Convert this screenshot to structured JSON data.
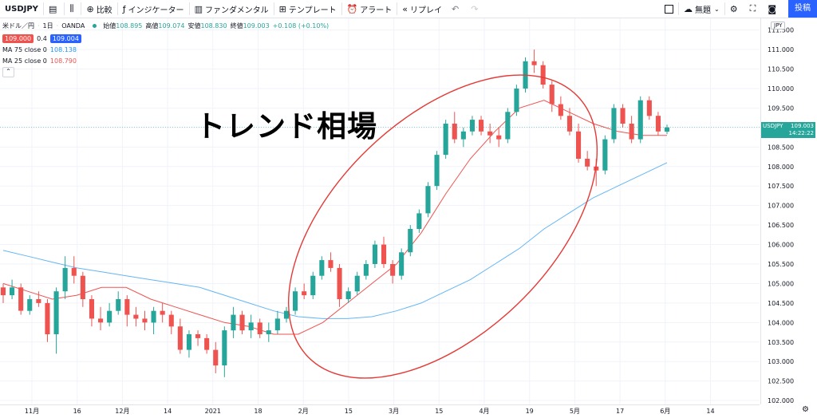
{
  "toolbar": {
    "symbol": "USDJPY",
    "compare_label": "比較",
    "indicators_label": "インジケーター",
    "fundamentals_label": "ファンダメンタル",
    "templates_label": "テンプレート",
    "alert_label": "アラート",
    "replay_label": "リプレイ",
    "layout_name": "無題",
    "publish_label": "投稿"
  },
  "legend": {
    "title": "米ドル／円",
    "interval": "1日",
    "source": "OANDA",
    "open_label": "始値",
    "open": "108.895",
    "high_label": "高値",
    "high": "109.074",
    "low_label": "安値",
    "low": "108.830",
    "close_label": "終値",
    "close": "109.003",
    "change": "+0.108 (+0.10%)",
    "bid": "109.000",
    "spread": "0.4",
    "ask": "109.004",
    "ma75_label": "MA 75 close 0",
    "ma75_value": "108.138",
    "ma25_label": "MA 25 close 0",
    "ma25_value": "108.790"
  },
  "overlay_text": "トレンド相場",
  "price_axis": {
    "currency": "JPY",
    "last_label": "USDJPY",
    "last_price": "109.003",
    "countdown": "14:22:22"
  },
  "colors": {
    "up": "#26a69a",
    "down": "#ef5350",
    "ma75": "#64b5f6",
    "ma25": "#ef5350",
    "ellipse": "#e53935",
    "publish": "#2962ff"
  },
  "chart_data": {
    "type": "candlestick",
    "y_ticks": [
      "111.500",
      "111.000",
      "110.500",
      "110.000",
      "109.500",
      "109.000",
      "108.500",
      "108.000",
      "107.500",
      "107.000",
      "106.500",
      "106.000",
      "105.500",
      "105.000",
      "104.500",
      "104.000",
      "103.500",
      "103.000",
      "102.500",
      "102.000"
    ],
    "x_ticks": [
      "11月",
      "16",
      "12月",
      "14",
      "2021",
      "18",
      "2月",
      "15",
      "3月",
      "15",
      "4月",
      "19",
      "5月",
      "17",
      "6月",
      "14"
    ],
    "ylim": [
      101.9,
      111.8
    ],
    "candles": [
      [
        104.9,
        105.0,
        104.5,
        104.7
      ],
      [
        104.7,
        105.1,
        104.6,
        104.9
      ],
      [
        104.9,
        105.0,
        104.2,
        104.3
      ],
      [
        104.3,
        104.7,
        104.2,
        104.6
      ],
      [
        104.6,
        104.8,
        104.4,
        104.5
      ],
      [
        104.5,
        104.6,
        103.5,
        103.7
      ],
      [
        103.7,
        104.9,
        103.2,
        104.8
      ],
      [
        104.8,
        105.7,
        104.6,
        105.4
      ],
      [
        105.4,
        105.7,
        105.0,
        105.2
      ],
      [
        105.2,
        105.3,
        104.4,
        104.6
      ],
      [
        104.6,
        104.7,
        103.9,
        104.1
      ],
      [
        104.1,
        104.4,
        103.8,
        104.0
      ],
      [
        104.0,
        104.5,
        103.9,
        104.3
      ],
      [
        104.3,
        104.8,
        104.2,
        104.6
      ],
      [
        104.6,
        104.7,
        103.9,
        104.2
      ],
      [
        104.2,
        104.4,
        103.9,
        104.1
      ],
      [
        104.1,
        104.3,
        103.8,
        104.0
      ],
      [
        104.0,
        104.4,
        103.7,
        104.3
      ],
      [
        104.3,
        104.5,
        104.0,
        104.2
      ],
      [
        104.2,
        104.3,
        103.7,
        103.9
      ],
      [
        103.9,
        104.1,
        103.2,
        103.3
      ],
      [
        103.3,
        103.8,
        103.1,
        103.7
      ],
      [
        103.7,
        103.8,
        103.4,
        103.6
      ],
      [
        103.6,
        103.7,
        103.2,
        103.3
      ],
      [
        103.3,
        103.5,
        102.7,
        102.9
      ],
      [
        102.9,
        103.9,
        102.6,
        103.8
      ],
      [
        103.8,
        104.4,
        103.6,
        104.2
      ],
      [
        104.2,
        104.3,
        103.7,
        103.8
      ],
      [
        103.8,
        104.2,
        103.6,
        104.0
      ],
      [
        104.0,
        104.1,
        103.6,
        103.7
      ],
      [
        103.7,
        104.0,
        103.5,
        103.8
      ],
      [
        103.8,
        104.3,
        103.7,
        104.1
      ],
      [
        104.1,
        104.4,
        104.0,
        104.3
      ],
      [
        104.3,
        104.9,
        104.2,
        104.8
      ],
      [
        104.8,
        105.0,
        104.6,
        104.7
      ],
      [
        104.7,
        105.3,
        104.6,
        105.2
      ],
      [
        105.2,
        105.7,
        105.1,
        105.6
      ],
      [
        105.6,
        105.8,
        105.3,
        105.4
      ],
      [
        105.4,
        105.5,
        104.4,
        104.6
      ],
      [
        104.6,
        104.9,
        104.5,
        104.8
      ],
      [
        104.8,
        105.3,
        104.7,
        105.2
      ],
      [
        105.2,
        105.6,
        105.1,
        105.5
      ],
      [
        105.5,
        106.1,
        105.4,
        106.0
      ],
      [
        106.0,
        106.2,
        105.4,
        105.5
      ],
      [
        105.5,
        105.6,
        105.0,
        105.2
      ],
      [
        105.2,
        105.9,
        105.1,
        105.8
      ],
      [
        105.8,
        106.5,
        105.7,
        106.4
      ],
      [
        106.4,
        106.9,
        106.3,
        106.8
      ],
      [
        106.8,
        107.6,
        106.7,
        107.5
      ],
      [
        107.5,
        108.4,
        107.4,
        108.3
      ],
      [
        108.3,
        109.2,
        108.2,
        109.1
      ],
      [
        109.1,
        109.4,
        108.6,
        108.7
      ],
      [
        108.7,
        109.0,
        108.5,
        108.9
      ],
      [
        108.9,
        109.3,
        108.8,
        109.2
      ],
      [
        109.2,
        109.3,
        108.8,
        108.9
      ],
      [
        108.9,
        109.1,
        108.6,
        108.8
      ],
      [
        108.8,
        109.0,
        108.5,
        108.7
      ],
      [
        108.7,
        109.5,
        108.6,
        109.4
      ],
      [
        109.4,
        110.1,
        109.3,
        110.0
      ],
      [
        110.0,
        110.8,
        109.9,
        110.7
      ],
      [
        110.7,
        111.0,
        110.4,
        110.6
      ],
      [
        110.6,
        110.7,
        110.0,
        110.1
      ],
      [
        110.1,
        110.2,
        109.4,
        109.6
      ],
      [
        109.6,
        109.8,
        109.2,
        109.3
      ],
      [
        109.3,
        109.5,
        108.8,
        108.9
      ],
      [
        108.9,
        109.1,
        108.1,
        108.2
      ],
      [
        108.2,
        108.4,
        107.9,
        108.0
      ],
      [
        108.0,
        108.2,
        107.5,
        107.9
      ],
      [
        107.9,
        108.8,
        107.8,
        108.7
      ],
      [
        108.7,
        109.6,
        108.6,
        109.5
      ],
      [
        109.5,
        109.6,
        109.0,
        109.1
      ],
      [
        109.1,
        109.3,
        108.6,
        108.7
      ],
      [
        108.7,
        109.8,
        108.6,
        109.7
      ],
      [
        109.7,
        109.8,
        109.2,
        109.3
      ],
      [
        109.3,
        109.4,
        108.8,
        108.9
      ],
      [
        108.895,
        109.074,
        108.83,
        109.003
      ]
    ],
    "ma75": [
      105.85,
      105.7,
      105.55,
      105.4,
      105.3,
      105.2,
      105.1,
      105.0,
      104.9,
      104.7,
      104.5,
      104.3,
      104.15,
      104.1,
      104.1,
      104.15,
      104.3,
      104.5,
      104.8,
      105.1,
      105.5,
      105.9,
      106.4,
      106.8,
      107.2,
      107.5,
      107.8,
      108.1
    ],
    "ma25": [
      105.0,
      104.8,
      104.6,
      104.7,
      104.9,
      104.9,
      104.6,
      104.4,
      104.2,
      104.0,
      103.9,
      103.7,
      103.7,
      104.0,
      104.5,
      105.0,
      105.5,
      106.3,
      107.3,
      108.2,
      108.9,
      109.5,
      109.7,
      109.4,
      109.1,
      108.9,
      108.8,
      108.8
    ]
  }
}
